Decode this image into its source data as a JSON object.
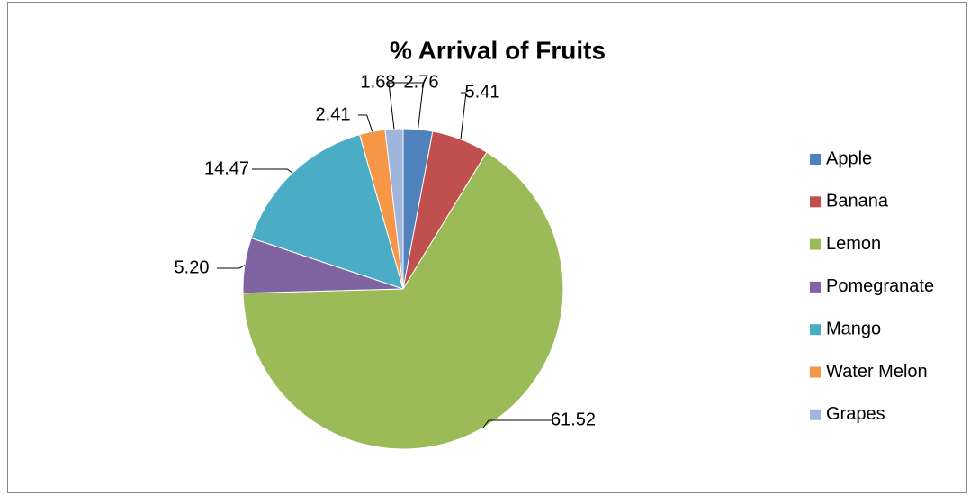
{
  "chart_data": {
    "type": "pie",
    "title": "% Arrival of Fruits",
    "categories": [
      "Apple",
      "Banana",
      "Lemon",
      "Pomegranate",
      "Mango",
      "Water Melon",
      "Grapes"
    ],
    "values": [
      2.76,
      5.41,
      61.52,
      5.2,
      14.47,
      2.41,
      1.68
    ],
    "value_labels": [
      "2.76",
      "5.41",
      "61.52",
      "5.20",
      "14.47",
      "2.41",
      "1.68"
    ],
    "colors": [
      "#4f81bd",
      "#c0504d",
      "#9bbb59",
      "#8064a2",
      "#4bacc6",
      "#f79646",
      "#a0b5dc"
    ],
    "legend": "right"
  }
}
